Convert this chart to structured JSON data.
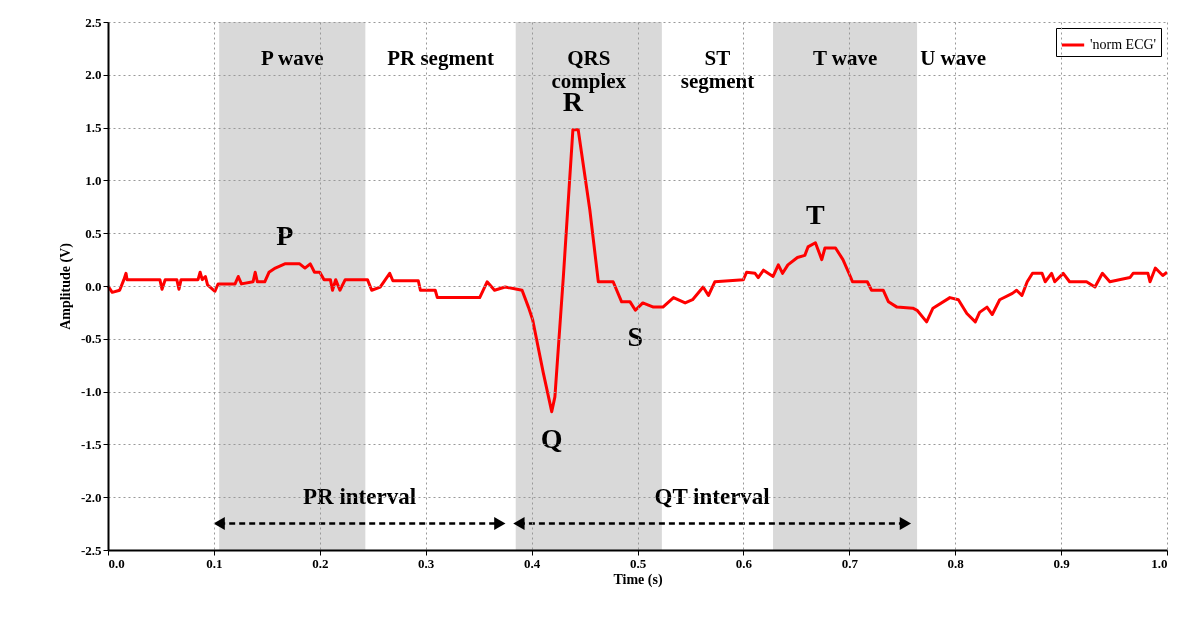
{
  "chart_data": {
    "type": "line",
    "xlabel": "Time (s)",
    "ylabel": "Amplitude (V)",
    "xlim": [
      0,
      1
    ],
    "ylim": [
      -2.5,
      2.5
    ],
    "xticks": [
      {
        "value": 0,
        "label": "0.0"
      },
      0.1,
      0.2,
      0.3,
      0.4,
      0.5,
      0.6,
      0.7,
      0.8,
      0.9,
      {
        "value": 1,
        "label": "1.0"
      }
    ],
    "yticks": [
      -2.5,
      {
        "value": -2,
        "label": "-2.0"
      },
      -1.5,
      {
        "value": -1,
        "label": "-1.0"
      },
      -0.5,
      {
        "value": 0,
        "label": "0.0"
      },
      0.5,
      {
        "value": 1,
        "label": "1.0"
      },
      1.5,
      {
        "value": 2,
        "label": "2.0"
      },
      2.5
    ],
    "grid": true,
    "legend": "top right",
    "marker": "none",
    "line_style": "solid",
    "series": [
      {
        "name": "'norm ECG'",
        "color": "#ff0000",
        "x": [
          0,
          0.004,
          0.011,
          0.015,
          0.017,
          0.018,
          0.049,
          0.051,
          0.054,
          0.065,
          0.067,
          0.069,
          0.085,
          0.087,
          0.089,
          0.092,
          0.094,
          0.101,
          0.104,
          0.12,
          0.123,
          0.126,
          0.137,
          0.139,
          0.141,
          0.148,
          0.152,
          0.158,
          0.167,
          0.181,
          0.186,
          0.191,
          0.195,
          0.2,
          0.204,
          0.21,
          0.212,
          0.215,
          0.219,
          0.224,
          0.245,
          0.249,
          0.257,
          0.266,
          0.269,
          0.293,
          0.295,
          0.309,
          0.311,
          0.33,
          0.351,
          0.358,
          0.365,
          0.375,
          0.391,
          0.397,
          0.401,
          0.411,
          0.419,
          0.422,
          0.43,
          0.439,
          0.444,
          0.455,
          0.463,
          0.477,
          0.485,
          0.493,
          0.498,
          0.505,
          0.515,
          0.524,
          0.534,
          0.545,
          0.552,
          0.562,
          0.567,
          0.573,
          0.6,
          0.603,
          0.611,
          0.614,
          0.619,
          0.628,
          0.633,
          0.637,
          0.642,
          0.651,
          0.658,
          0.661,
          0.668,
          0.674,
          0.677,
          0.687,
          0.694,
          0.701,
          0.703,
          0.717,
          0.721,
          0.732,
          0.737,
          0.745,
          0.76,
          0.764,
          0.773,
          0.779,
          0.795,
          0.803,
          0.811,
          0.819,
          0.823,
          0.83,
          0.835,
          0.842,
          0.854,
          0.858,
          0.863,
          0.868,
          0.873,
          0.882,
          0.885,
          0.891,
          0.894,
          0.902,
          0.908,
          0.924,
          0.932,
          0.939,
          0.946,
          0.965,
          0.968,
          0.982,
          0.984,
          0.989,
          0.996,
          1
        ],
        "values": [
          0,
          -0.06,
          -0.04,
          0.06,
          0.12,
          0.06,
          0.06,
          -0.03,
          0.06,
          0.06,
          -0.03,
          0.06,
          0.06,
          0.13,
          0.06,
          0.09,
          0.01,
          -0.05,
          0.02,
          0.02,
          0.09,
          0.02,
          0.04,
          0.13,
          0.04,
          0.04,
          0.13,
          0.17,
          0.21,
          0.21,
          0.17,
          0.21,
          0.13,
          0.13,
          0.06,
          0.06,
          -0.04,
          0.06,
          -0.04,
          0.06,
          0.06,
          -0.04,
          -0.01,
          0.12,
          0.05,
          0.05,
          -0.04,
          -0.04,
          -0.11,
          -0.11,
          -0.11,
          0.04,
          -0.04,
          -0.01,
          -0.04,
          -0.2,
          -0.32,
          -0.82,
          -1.19,
          -1.05,
          0.09,
          1.48,
          1.48,
          0.72,
          0.04,
          0.04,
          -0.15,
          -0.15,
          -0.23,
          -0.16,
          -0.2,
          -0.2,
          -0.11,
          -0.16,
          -0.13,
          -0.01,
          -0.09,
          0.04,
          0.06,
          0.13,
          0.12,
          0.08,
          0.15,
          0.09,
          0.2,
          0.12,
          0.2,
          0.27,
          0.29,
          0.37,
          0.41,
          0.25,
          0.36,
          0.36,
          0.25,
          0.09,
          0.04,
          0.04,
          -0.04,
          -0.04,
          -0.15,
          -0.2,
          -0.21,
          -0.23,
          -0.34,
          -0.21,
          -0.11,
          -0.13,
          -0.26,
          -0.34,
          -0.25,
          -0.2,
          -0.27,
          -0.13,
          -0.07,
          -0.04,
          -0.09,
          0.04,
          0.12,
          0.12,
          0.04,
          0.12,
          0.04,
          0.12,
          0.04,
          0.04,
          -0.01,
          0.12,
          0.04,
          0.08,
          0.12,
          0.12,
          0.04,
          0.17,
          0.1,
          0.13
        ]
      }
    ],
    "bands": [
      {
        "axis": "x",
        "from": 0.105,
        "to": 0.243,
        "label": "P wave",
        "color": "#d9d9d9"
      },
      {
        "axis": "x",
        "from": 0.385,
        "to": 0.523,
        "label": "QRS\ncomplex",
        "color": "#d9d9d9"
      },
      {
        "axis": "x",
        "from": 0.628,
        "to": 0.764,
        "label": "T wave",
        "color": "#d9d9d9"
      }
    ],
    "annotations": [
      "PR segment",
      "ST\nsegment",
      "U wave",
      "PR interval",
      "QT interval",
      {
        "text": "P",
        "x": 0.167,
        "y": 0.21
      },
      {
        "text": "R",
        "x": 0.439,
        "y": 1.48
      },
      {
        "text": "Q",
        "x": 0.419,
        "y": -1.19
      },
      {
        "text": "S",
        "x": 0.498,
        "y": -0.23
      },
      {
        "text": "T",
        "x": 0.668,
        "y": 0.41
      }
    ]
  }
}
